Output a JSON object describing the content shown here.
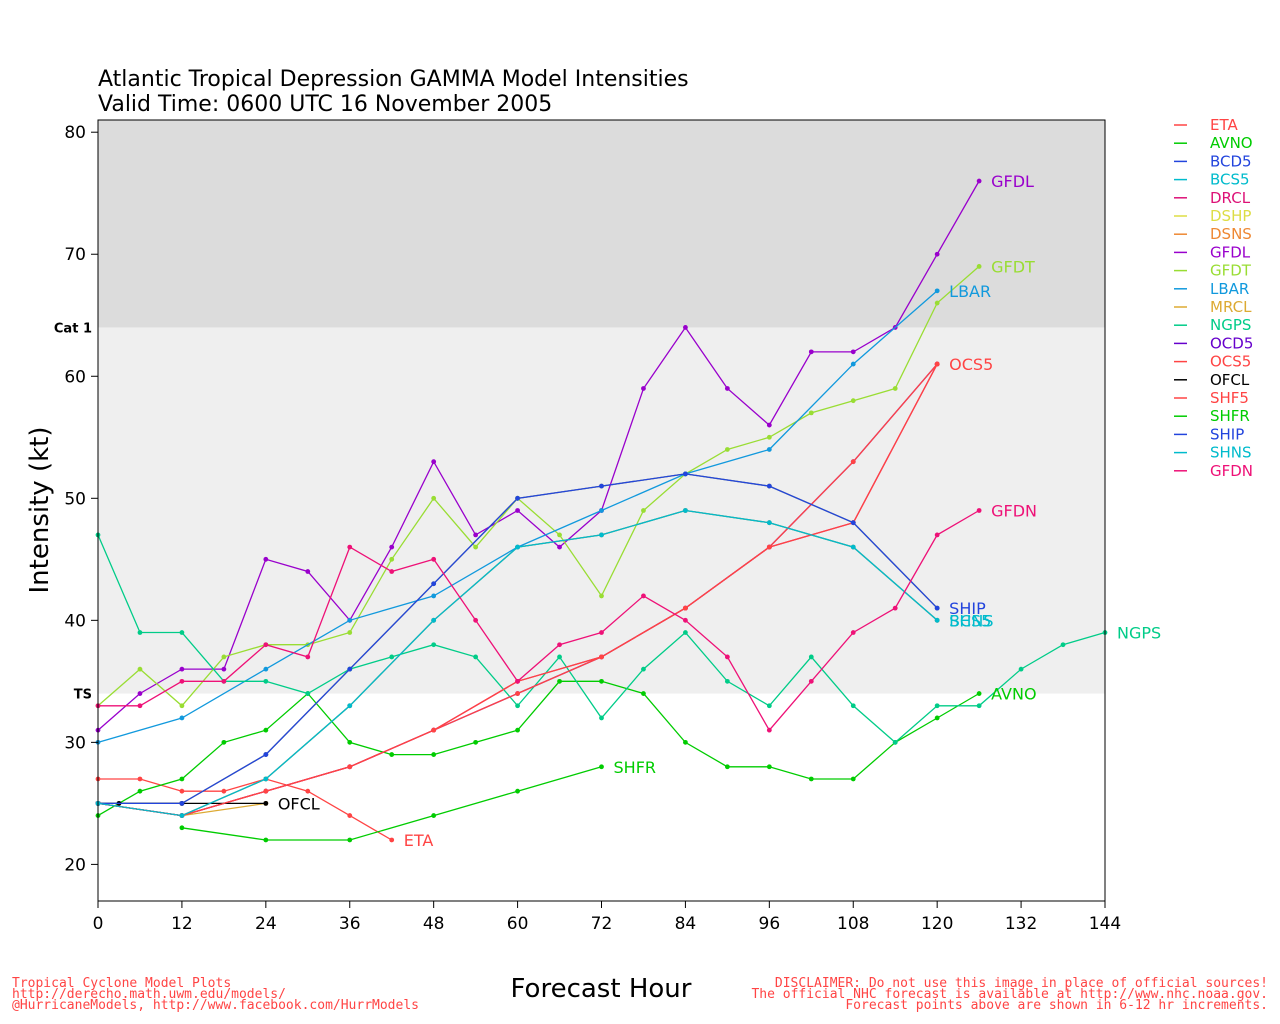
{
  "chart_data": {
    "type": "line",
    "title": "Atlantic Tropical Depression GAMMA Model Intensities",
    "subtitle": "Valid Time: 0600 UTC 16 November 2005",
    "xlabel": "Forecast Hour",
    "ylabel": "Intensity (kt)",
    "xlim": [
      0,
      144
    ],
    "ylim": [
      17,
      81
    ],
    "xticks": [
      0,
      12,
      24,
      36,
      48,
      60,
      72,
      84,
      96,
      108,
      120,
      132,
      144
    ],
    "yticks": [
      20,
      30,
      40,
      50,
      60,
      70,
      80
    ],
    "bands": [
      {
        "from": 34,
        "to": 64,
        "color": "#efefef",
        "label": "TS",
        "label_y": 34
      },
      {
        "from": 64,
        "to": 81,
        "color": "#dcdcdc",
        "label": "Cat 1",
        "label_y": 64
      }
    ],
    "legend_position": "right",
    "series": [
      {
        "name": "ETA",
        "color": "#ff4444",
        "label": "ETA",
        "x": [
          0,
          6,
          12,
          18,
          24,
          30,
          36,
          42
        ],
        "y": [
          27,
          27,
          26,
          26,
          27,
          26,
          24,
          22
        ]
      },
      {
        "name": "AVNO",
        "color": "#00cc00",
        "label": "AVNO",
        "x": [
          0,
          6,
          12,
          18,
          24,
          30,
          36,
          42,
          48,
          54,
          60,
          66,
          72,
          78,
          84,
          90,
          96,
          102,
          108,
          114,
          120,
          126
        ],
        "y": [
          24,
          26,
          27,
          30,
          31,
          34,
          30,
          29,
          29,
          30,
          31,
          35,
          35,
          34,
          30,
          28,
          28,
          27,
          27,
          30,
          32,
          34
        ]
      },
      {
        "name": "BCD5",
        "color": "#2244dd",
        "label": "",
        "x": [
          0,
          12,
          24,
          36,
          48,
          60,
          72,
          84,
          96,
          108,
          120
        ],
        "y": [
          25,
          25,
          29,
          36,
          43,
          50,
          51,
          52,
          51,
          48,
          41
        ]
      },
      {
        "name": "BCS5",
        "color": "#00bbcc",
        "label": "BCS5",
        "x": [
          0,
          12,
          24,
          36,
          48,
          60,
          72,
          84,
          96,
          108,
          120
        ],
        "y": [
          25,
          24,
          27,
          33,
          40,
          46,
          47,
          49,
          48,
          46,
          40
        ]
      },
      {
        "name": "DRCL",
        "color": "#dd1177",
        "label": "",
        "x": [
          0,
          12,
          24,
          36,
          48,
          60,
          72,
          84,
          96,
          108,
          120
        ],
        "y": [
          25,
          24,
          26,
          28,
          31,
          35,
          37,
          41,
          46,
          48,
          61
        ]
      },
      {
        "name": "DSHP",
        "color": "#dddd44",
        "label": "",
        "x": [
          0,
          12,
          24,
          36,
          48,
          60,
          72,
          84,
          96,
          108,
          120
        ],
        "y": [
          25,
          25,
          29,
          36,
          43,
          50,
          51,
          52,
          51,
          48,
          41
        ]
      },
      {
        "name": "DSNS",
        "color": "#ee8833",
        "label": "",
        "x": [
          0,
          12,
          24,
          36,
          48,
          60,
          72,
          84,
          96,
          108,
          120
        ],
        "y": [
          25,
          24,
          27,
          33,
          40,
          46,
          47,
          49,
          48,
          46,
          40
        ]
      },
      {
        "name": "GFDL",
        "color": "#9900cc",
        "label": "GFDL",
        "x": [
          0,
          6,
          12,
          18,
          24,
          30,
          36,
          42,
          48,
          54,
          60,
          66,
          72,
          78,
          84,
          90,
          96,
          102,
          108,
          114,
          120,
          126
        ],
        "y": [
          31,
          34,
          36,
          36,
          45,
          44,
          40,
          46,
          53,
          47,
          49,
          46,
          49,
          59,
          64,
          59,
          56,
          62,
          62,
          64,
          70,
          76
        ]
      },
      {
        "name": "GFDT",
        "color": "#99dd33",
        "label": "GFDT",
        "x": [
          0,
          6,
          12,
          18,
          24,
          30,
          36,
          42,
          48,
          54,
          60,
          66,
          72,
          78,
          84,
          90,
          96,
          102,
          108,
          114,
          120,
          126
        ],
        "y": [
          33,
          36,
          33,
          37,
          38,
          38,
          39,
          45,
          50,
          46,
          50,
          47,
          42,
          49,
          52,
          54,
          55,
          57,
          58,
          59,
          66,
          69
        ]
      },
      {
        "name": "LBAR",
        "color": "#1199dd",
        "label": "LBAR",
        "x": [
          0,
          12,
          24,
          36,
          48,
          60,
          72,
          84,
          96,
          108,
          120
        ],
        "y": [
          30,
          32,
          36,
          40,
          42,
          46,
          49,
          52,
          54,
          61,
          67
        ]
      },
      {
        "name": "MRCL",
        "color": "#ddaa33",
        "label": "",
        "x": [
          0,
          12,
          24
        ],
        "y": [
          25,
          24,
          25
        ]
      },
      {
        "name": "NGPS",
        "color": "#00cc88",
        "label": "NGPS",
        "x": [
          0,
          6,
          12,
          18,
          24,
          30,
          36,
          42,
          48,
          54,
          60,
          66,
          72,
          78,
          84,
          90,
          96,
          102,
          108,
          114,
          120,
          126,
          132,
          138,
          144
        ],
        "y": [
          47,
          39,
          39,
          35,
          35,
          34,
          36,
          37,
          38,
          37,
          33,
          37,
          32,
          36,
          39,
          35,
          33,
          37,
          33,
          30,
          33,
          33,
          36,
          38,
          39
        ]
      },
      {
        "name": "OCD5",
        "color": "#6600cc",
        "label": "",
        "x": [
          0,
          12,
          24,
          36,
          48,
          60,
          72,
          84,
          96,
          108,
          120
        ],
        "y": [
          25,
          24,
          26,
          28,
          31,
          34,
          37,
          41,
          46,
          53,
          61
        ]
      },
      {
        "name": "OCS5",
        "color": "#ff4444",
        "label": "OCS5",
        "x": [
          0,
          12,
          24,
          36,
          48,
          60,
          72,
          84,
          96,
          108,
          120
        ],
        "y": [
          25,
          24,
          26,
          28,
          31,
          34,
          37,
          41,
          46,
          53,
          61
        ]
      },
      {
        "name": "OFCL",
        "color": "#000000",
        "label": "OFCL",
        "x": [
          0,
          3,
          12,
          24
        ],
        "y": [
          25,
          25,
          25,
          25
        ]
      },
      {
        "name": "SHF5",
        "color": "#ff4444",
        "label": "",
        "x": [
          0,
          12,
          24,
          36,
          48,
          60,
          72,
          84,
          96,
          108,
          120
        ],
        "y": [
          25,
          24,
          26,
          28,
          31,
          35,
          37,
          41,
          46,
          48,
          61
        ]
      },
      {
        "name": "SHFR",
        "color": "#00cc00",
        "label": "SHFR",
        "x": [
          12,
          24,
          36,
          48,
          60,
          72
        ],
        "y": [
          23,
          22,
          22,
          24,
          26,
          28
        ]
      },
      {
        "name": "SHIP",
        "color": "#2244dd",
        "label": "SHIP",
        "x": [
          0,
          12,
          24,
          36,
          48,
          60,
          72,
          84,
          96,
          108,
          120
        ],
        "y": [
          25,
          25,
          29,
          36,
          43,
          50,
          51,
          52,
          51,
          48,
          41
        ]
      },
      {
        "name": "SHNS",
        "color": "#00bbcc",
        "label": "SHNS",
        "x": [
          0,
          12,
          24,
          36,
          48,
          60,
          72,
          84,
          96,
          108,
          120
        ],
        "y": [
          25,
          24,
          27,
          33,
          40,
          46,
          47,
          49,
          48,
          46,
          40
        ]
      },
      {
        "name": "GFDN",
        "color": "#ee1177",
        "label": "GFDN",
        "x": [
          0,
          6,
          12,
          18,
          24,
          30,
          36,
          42,
          48,
          54,
          60,
          66,
          72,
          78,
          84,
          90,
          96,
          102,
          108,
          114,
          120,
          126
        ],
        "y": [
          33,
          33,
          35,
          35,
          38,
          37,
          46,
          44,
          45,
          40,
          35,
          38,
          39,
          42,
          40,
          37,
          31,
          35,
          39,
          41,
          47,
          49
        ]
      }
    ]
  },
  "footer": {
    "left": "Tropical Cyclone Model Plots\nhttp://derecho.math.uwm.edu/models/\n@HurricaneModels, http://www.facebook.com/HurrModels",
    "right": "DISCLAIMER: Do not use this image in place of official sources!\nThe official NHC forecast is available at http://www.nhc.noaa.gov.\nForecast points above are shown in 6-12 hr increments."
  }
}
